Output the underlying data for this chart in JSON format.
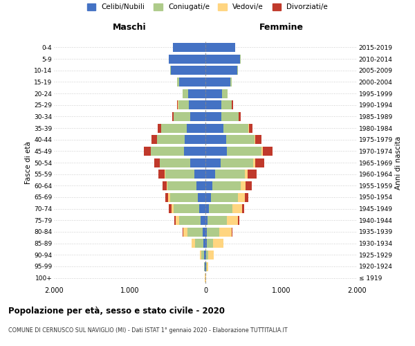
{
  "age_groups": [
    "100+",
    "95-99",
    "90-94",
    "85-89",
    "80-84",
    "75-79",
    "70-74",
    "65-69",
    "60-64",
    "55-59",
    "50-54",
    "45-49",
    "40-44",
    "35-39",
    "30-34",
    "25-29",
    "20-24",
    "15-19",
    "10-14",
    "5-9",
    "0-4"
  ],
  "birth_years": [
    "≤ 1919",
    "1920-1924",
    "1925-1929",
    "1930-1934",
    "1935-1939",
    "1940-1944",
    "1945-1949",
    "1950-1954",
    "1955-1959",
    "1960-1964",
    "1965-1969",
    "1970-1974",
    "1975-1979",
    "1980-1984",
    "1985-1989",
    "1990-1994",
    "1995-1999",
    "2000-2004",
    "2005-2009",
    "2010-2014",
    "2015-2019"
  ],
  "male": {
    "celibi": [
      2,
      5,
      15,
      30,
      40,
      60,
      80,
      100,
      120,
      150,
      200,
      280,
      270,
      250,
      200,
      220,
      230,
      350,
      460,
      480,
      430
    ],
    "coniugati": [
      2,
      10,
      40,
      110,
      200,
      290,
      340,
      370,
      380,
      380,
      400,
      440,
      370,
      330,
      220,
      140,
      70,
      20,
      5,
      5,
      3
    ],
    "vedovi": [
      1,
      5,
      20,
      40,
      50,
      40,
      30,
      20,
      15,
      10,
      5,
      5,
      3,
      2,
      1,
      1,
      0,
      0,
      0,
      0,
      0
    ],
    "divorziati": [
      0,
      0,
      2,
      5,
      10,
      20,
      35,
      40,
      50,
      80,
      70,
      90,
      70,
      50,
      20,
      10,
      5,
      0,
      0,
      0,
      0
    ]
  },
  "female": {
    "nubili": [
      2,
      5,
      10,
      15,
      20,
      30,
      50,
      70,
      90,
      130,
      200,
      280,
      270,
      240,
      210,
      210,
      220,
      330,
      420,
      460,
      390
    ],
    "coniugate": [
      2,
      10,
      30,
      90,
      160,
      250,
      310,
      360,
      380,
      390,
      430,
      460,
      380,
      330,
      230,
      140,
      70,
      20,
      5,
      5,
      3
    ],
    "vedove": [
      3,
      20,
      70,
      130,
      170,
      150,
      120,
      90,
      60,
      40,
      25,
      20,
      10,
      5,
      2,
      1,
      1,
      0,
      0,
      0,
      0
    ],
    "divorziate": [
      0,
      0,
      2,
      5,
      10,
      20,
      35,
      50,
      80,
      120,
      120,
      130,
      80,
      50,
      20,
      10,
      5,
      0,
      0,
      0,
      0
    ]
  },
  "colors": {
    "celibi": "#4472C4",
    "coniugati": "#AECB8A",
    "vedovi": "#FFD580",
    "divorziati": "#C0392B"
  },
  "xlim": 2000,
  "title": "Popolazione per età, sesso e stato civile - 2020",
  "subtitle": "COMUNE DI CERNUSCO SUL NAVIGLIO (MI) - Dati ISTAT 1° gennaio 2020 - Elaborazione TUTTITALIA.IT",
  "ylabel_left": "Fasce di età",
  "ylabel_right": "Anni di nascita",
  "xlabel_left": "Maschi",
  "xlabel_right": "Femmine",
  "legend_labels": [
    "Celibi/Nubili",
    "Coniugati/e",
    "Vedovi/e",
    "Divorziati/e"
  ],
  "bg_color": "#FFFFFF",
  "grid_color": "#CCCCCC"
}
